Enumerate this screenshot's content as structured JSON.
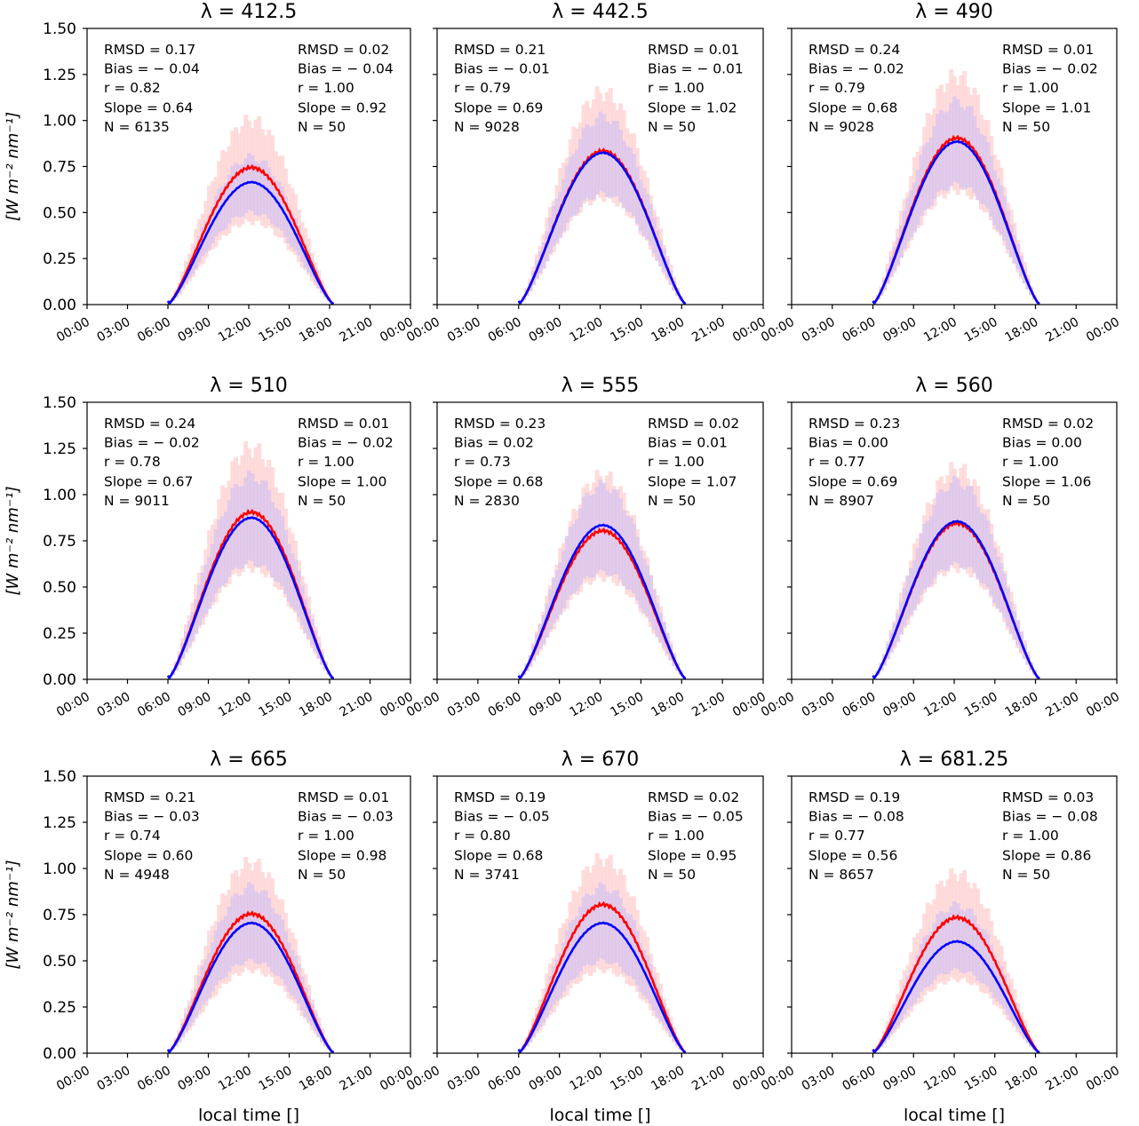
{
  "chart_data": {
    "type": "line",
    "layout": "3x3 grid of subplots",
    "shared_ylabel": "[W m⁻² nm⁻¹]",
    "shared_xlabel": "local time []",
    "ylim": [
      0,
      1.5
    ],
    "yticks": [
      "0.00",
      "0.25",
      "0.50",
      "0.75",
      "1.00",
      "1.25",
      "1.50"
    ],
    "xlim_hours": [
      0,
      24
    ],
    "xticks": [
      "00:00",
      "03:00",
      "06:00",
      "09:00",
      "12:00",
      "15:00",
      "18:00",
      "21:00",
      "00:00"
    ],
    "colors": {
      "red_series": "#ff0000",
      "blue_series": "#0000ff",
      "red_errorbars": "#ffd6d6",
      "blue_errorbars": "#d9c6ee",
      "axes": "#000000"
    },
    "series_names": [
      "red",
      "blue"
    ],
    "panels": [
      {
        "title": "λ = 412.5",
        "left_stats": [
          "RMSD = 0.17",
          "Bias = − 0.04",
          "r = 0.82",
          "Slope = 0.64",
          "N = 6135"
        ],
        "right_stats": [
          "RMSD = 0.02",
          "Bias = − 0.04",
          "r = 1.00",
          "Slope = 0.92",
          "N = 50"
        ],
        "red_peak": 0.73,
        "blue_peak": 0.65,
        "red_band": [
          0.45,
          1.0
        ],
        "blue_band": [
          0.5,
          0.8
        ]
      },
      {
        "title": "λ = 442.5",
        "left_stats": [
          "RMSD = 0.21",
          "Bias = − 0.01",
          "r = 0.79",
          "Slope = 0.69",
          "N = 9028"
        ],
        "right_stats": [
          "RMSD = 0.01",
          "Bias = − 0.01",
          "r = 1.00",
          "Slope = 1.02",
          "N = 50"
        ],
        "red_peak": 0.82,
        "blue_peak": 0.81,
        "red_band": [
          0.58,
          1.15
        ],
        "blue_band": [
          0.6,
          1.02
        ]
      },
      {
        "title": "λ = 490",
        "left_stats": [
          "RMSD = 0.24",
          "Bias = − 0.02",
          "r = 0.79",
          "Slope = 0.68",
          "N = 9028"
        ],
        "right_stats": [
          "RMSD = 0.01",
          "Bias = − 0.02",
          "r = 1.00",
          "Slope = 1.01",
          "N = 50"
        ],
        "red_peak": 0.89,
        "blue_peak": 0.87,
        "red_band": [
          0.62,
          1.24
        ],
        "blue_band": [
          0.65,
          1.1
        ]
      },
      {
        "title": "λ = 510",
        "left_stats": [
          "RMSD = 0.24",
          "Bias = − 0.02",
          "r = 0.78",
          "Slope = 0.67",
          "N = 9011"
        ],
        "right_stats": [
          "RMSD = 0.01",
          "Bias = − 0.02",
          "r = 1.00",
          "Slope = 1.00",
          "N = 50"
        ],
        "red_peak": 0.89,
        "blue_peak": 0.86,
        "red_band": [
          0.6,
          1.25
        ],
        "blue_band": [
          0.63,
          1.1
        ]
      },
      {
        "title": "λ = 555",
        "left_stats": [
          "RMSD = 0.23",
          "Bias = 0.02",
          "r = 0.73",
          "Slope = 0.68",
          "N = 2830"
        ],
        "right_stats": [
          "RMSD = 0.02",
          "Bias = 0.01",
          "r = 1.00",
          "Slope = 1.07",
          "N = 50"
        ],
        "red_peak": 0.79,
        "blue_peak": 0.82,
        "red_band": [
          0.55,
          1.1
        ],
        "blue_band": [
          0.58,
          1.05
        ]
      },
      {
        "title": "λ = 560",
        "left_stats": [
          "RMSD = 0.23",
          "Bias = 0.00",
          "r = 0.77",
          "Slope = 0.69",
          "N = 8907"
        ],
        "right_stats": [
          "RMSD = 0.02",
          "Bias = 0.00",
          "r = 1.00",
          "Slope = 1.06",
          "N = 50"
        ],
        "red_peak": 0.83,
        "blue_peak": 0.84,
        "red_band": [
          0.6,
          1.14
        ],
        "blue_band": [
          0.62,
          1.07
        ]
      },
      {
        "title": "λ = 665",
        "left_stats": [
          "RMSD = 0.21",
          "Bias = − 0.03",
          "r = 0.74",
          "Slope = 0.60",
          "N = 4948"
        ],
        "right_stats": [
          "RMSD = 0.01",
          "Bias = − 0.03",
          "r = 1.00",
          "Slope = 0.98",
          "N = 50"
        ],
        "red_peak": 0.74,
        "blue_peak": 0.69,
        "red_band": [
          0.45,
          1.03
        ],
        "blue_band": [
          0.5,
          0.9
        ]
      },
      {
        "title": "λ = 670",
        "left_stats": [
          "RMSD = 0.19",
          "Bias = − 0.05",
          "r = 0.80",
          "Slope = 0.68",
          "N = 3741"
        ],
        "right_stats": [
          "RMSD = 0.02",
          "Bias = − 0.05",
          "r = 1.00",
          "Slope = 0.95",
          "N = 50"
        ],
        "red_peak": 0.79,
        "blue_peak": 0.69,
        "red_band": [
          0.45,
          1.05
        ],
        "blue_band": [
          0.5,
          0.9
        ]
      },
      {
        "title": "λ = 681.25",
        "left_stats": [
          "RMSD = 0.19",
          "Bias = − 0.08",
          "r = 0.77",
          "Slope = 0.56",
          "N = 8657"
        ],
        "right_stats": [
          "RMSD = 0.03",
          "Bias = − 0.08",
          "r = 1.00",
          "Slope = 0.86",
          "N = 50"
        ],
        "red_peak": 0.72,
        "blue_peak": 0.59,
        "red_band": [
          0.4,
          0.97
        ],
        "blue_band": [
          0.45,
          0.8
        ]
      }
    ],
    "daylight_hours": [
      6.0,
      18.3
    ],
    "peak_hour": 12.2
  }
}
